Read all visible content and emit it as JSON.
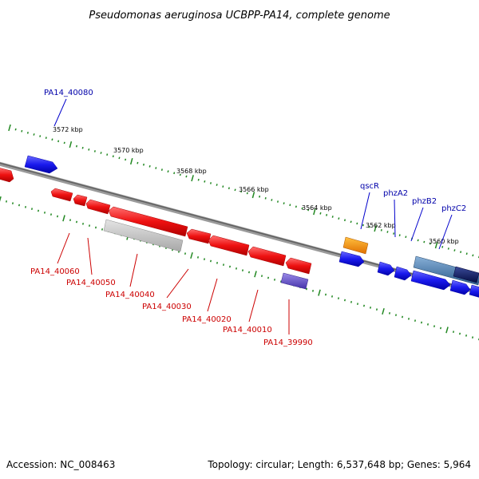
{
  "title": "Pseudomonas aeruginosa UCBPP-PA14, complete genome",
  "footer": {
    "accession": "Accession: NC_008463",
    "summary": "Topology: circular; Length: 6,537,648 bp; Genes: 5,964"
  },
  "ruler_labels": [
    "3572 kbp",
    "3570 kbp",
    "3568 kbp",
    "3566 kbp",
    "3564 kbp",
    "3562 kbp",
    "3560 kbp"
  ],
  "gene_labels": {
    "PA14_40080": "PA14_40080",
    "qscR": "qscR",
    "phzA2": "phzA2",
    "phzB2": "phzB2",
    "phzC2": "phzC2",
    "PA14_40060": "PA14_40060",
    "PA14_40050": "PA14_40050",
    "PA14_40040": "PA14_40040",
    "PA14_40030": "PA14_40030",
    "PA14_40020": "PA14_40020",
    "PA14_40010": "PA14_40010",
    "PA14_39990": "PA14_39990"
  },
  "colors": {
    "reverse_gene": "#ee1111",
    "forward_gene": "#1a1aee",
    "qscR_gene": "#ff9900",
    "pseudo_gene": "#bbbbbb",
    "purple_gene": "#6655cc",
    "steel_gene": "#4477aa",
    "navy_gene": "#0a1a66",
    "backbone": "#777777",
    "ticks": "#228822"
  }
}
